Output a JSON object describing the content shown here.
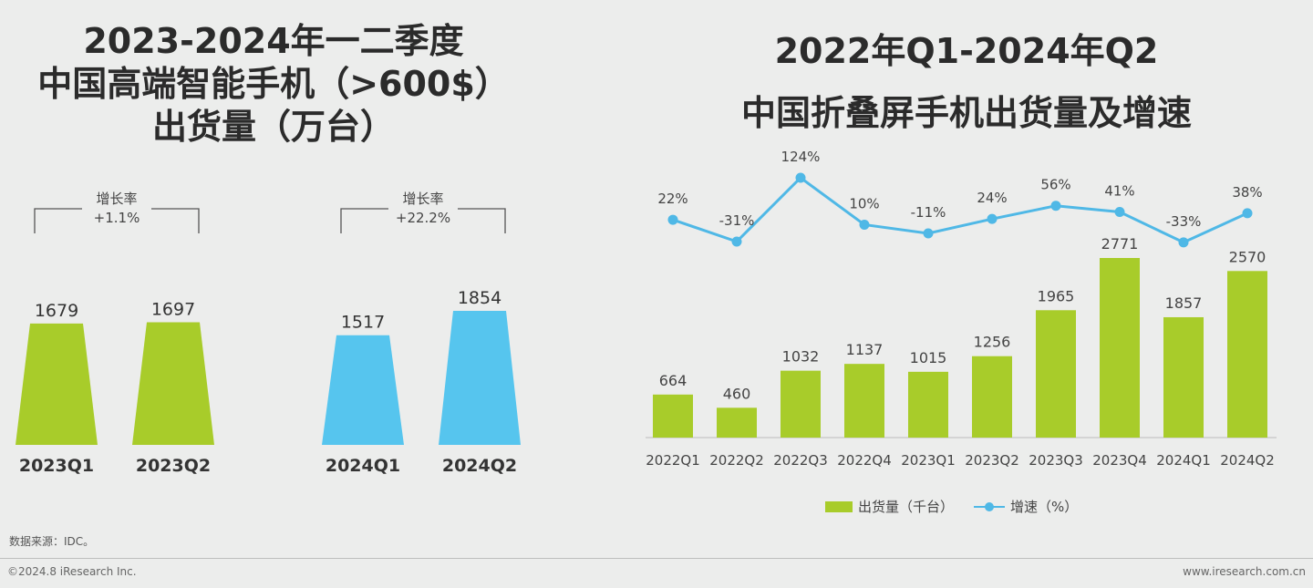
{
  "left_title": [
    "2023-2024年一二季度",
    "中国高端智能手机（>600$）",
    "出货量（万台）"
  ],
  "right_title": [
    "2022年Q1-2024年Q2",
    "中国折叠屏手机出货量及增速"
  ],
  "colors": {
    "green": "#a8cc2a",
    "blue": "#56c5ee",
    "line": "#4fb8e6",
    "text": "#333333"
  },
  "chart_data": [
    {
      "type": "bar",
      "title": "2023-2024年一二季度 中国高端智能手机（>600$）出货量（万台）",
      "categories": [
        "2023Q1",
        "2023Q2",
        "2024Q1",
        "2024Q2"
      ],
      "values": [
        1679,
        1697,
        1517,
        1854
      ],
      "bar_colors": [
        "#a8cc2a",
        "#a8cc2a",
        "#56c5ee",
        "#56c5ee"
      ],
      "growth": [
        {
          "label": "增长率",
          "value": "+1.1%",
          "from": 0,
          "to": 1
        },
        {
          "label": "增长率",
          "value": "+22.2%",
          "from": 2,
          "to": 3
        }
      ]
    },
    {
      "type": "bar",
      "title": "2022年Q1-2024年Q2 中国折叠屏手机出货量及增速",
      "categories": [
        "2022Q1",
        "2022Q2",
        "2022Q3",
        "2022Q4",
        "2023Q1",
        "2023Q2",
        "2023Q3",
        "2023Q4",
        "2024Q1",
        "2024Q2"
      ],
      "series": [
        {
          "name": "出货量（千台）",
          "type": "bar",
          "values": [
            664,
            460,
            1032,
            1137,
            1015,
            1256,
            1965,
            2771,
            1857,
            2570
          ]
        },
        {
          "name": "增速（%）",
          "type": "line",
          "values": [
            22,
            -31,
            124,
            10,
            -11,
            24,
            56,
            41,
            -33,
            38
          ]
        }
      ],
      "legend": "bottom"
    }
  ],
  "source": "数据来源：IDC。",
  "footer_left": "©2024.8 iResearch Inc.",
  "footer_right": "www.iresearch.com.cn"
}
